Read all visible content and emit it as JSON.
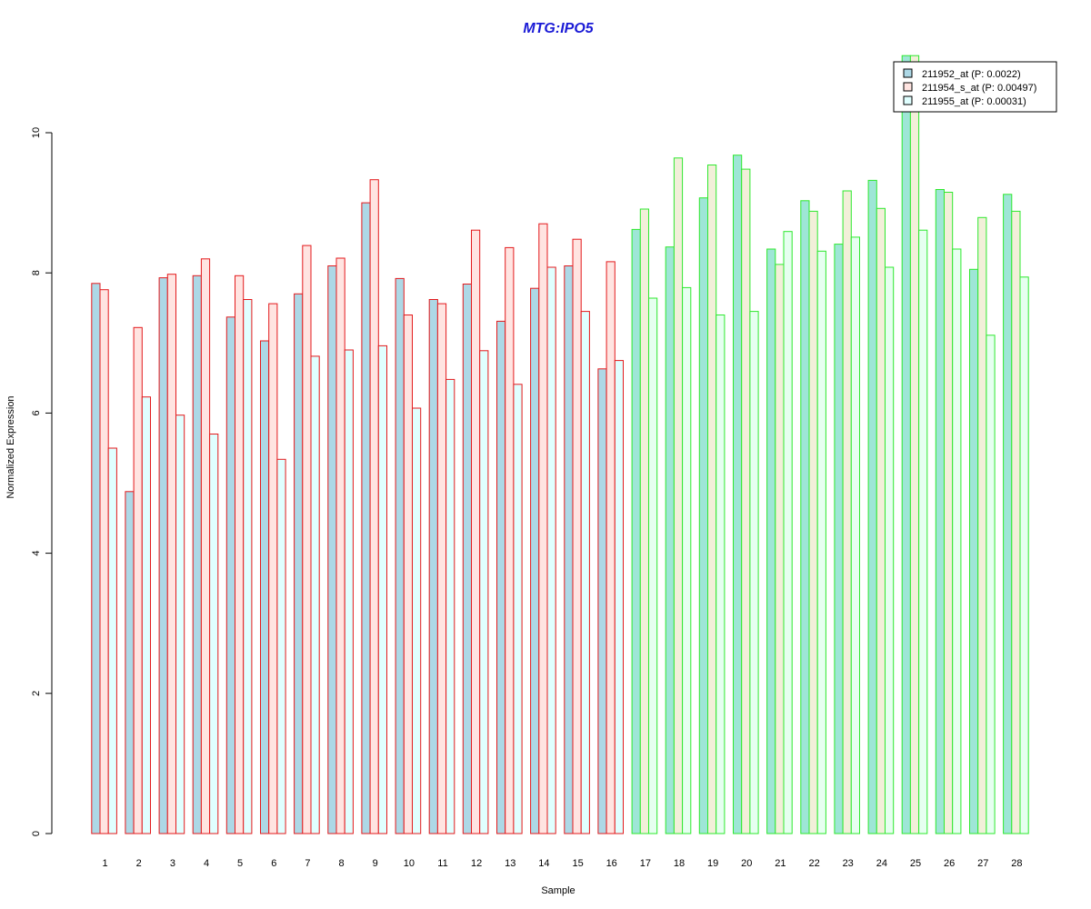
{
  "chart_data": {
    "type": "bar",
    "title": "MTG:IPO5",
    "xlabel": "Sample",
    "ylabel": "Normalized Expression",
    "ylim": [
      0,
      11.2
    ],
    "yticks": [
      0,
      2,
      4,
      6,
      8,
      10
    ],
    "grid": false,
    "legend_position": "top-right",
    "categories": [
      "1",
      "2",
      "3",
      "4",
      "5",
      "6",
      "7",
      "8",
      "9",
      "10",
      "11",
      "12",
      "13",
      "14",
      "15",
      "16",
      "17",
      "18",
      "19",
      "20",
      "21",
      "22",
      "23",
      "24",
      "25",
      "26",
      "27",
      "28"
    ],
    "group_border_colors": {
      "1-16": "#e31a1c",
      "17-28": "#2ee82e"
    },
    "series": [
      {
        "name": "211952_at (P: 0.0022)",
        "fill": "#add8e6",
        "values": [
          7.85,
          4.88,
          7.93,
          7.96,
          7.37,
          7.03,
          7.7,
          8.1,
          9.0,
          7.92,
          7.62,
          7.84,
          7.31,
          7.78,
          8.1,
          6.63,
          8.62,
          8.37,
          9.07,
          9.68,
          8.34,
          9.03,
          8.41,
          9.32,
          11.1,
          9.19,
          8.05,
          9.12
        ]
      },
      {
        "name": "211954_s_at (P: 0.00497)",
        "fill": "#ffe4e1",
        "values": [
          7.76,
          7.22,
          7.98,
          8.2,
          7.96,
          7.56,
          8.39,
          8.21,
          9.33,
          7.4,
          7.56,
          8.61,
          8.36,
          8.7,
          8.48,
          8.16,
          8.91,
          9.64,
          9.54,
          9.48,
          8.12,
          8.88,
          9.17,
          8.92,
          11.1,
          9.15,
          8.79,
          8.88
        ]
      },
      {
        "name": "211955_at (P: 0.00031)",
        "fill": "#e0ffff",
        "values": [
          5.5,
          6.23,
          5.97,
          5.7,
          7.62,
          5.34,
          6.81,
          6.9,
          6.96,
          6.07,
          6.48,
          6.89,
          6.41,
          8.08,
          7.45,
          6.75,
          7.64,
          7.79,
          7.4,
          7.45,
          8.59,
          8.31,
          8.51,
          8.08,
          8.61,
          8.34,
          7.11,
          7.94
        ]
      }
    ]
  }
}
